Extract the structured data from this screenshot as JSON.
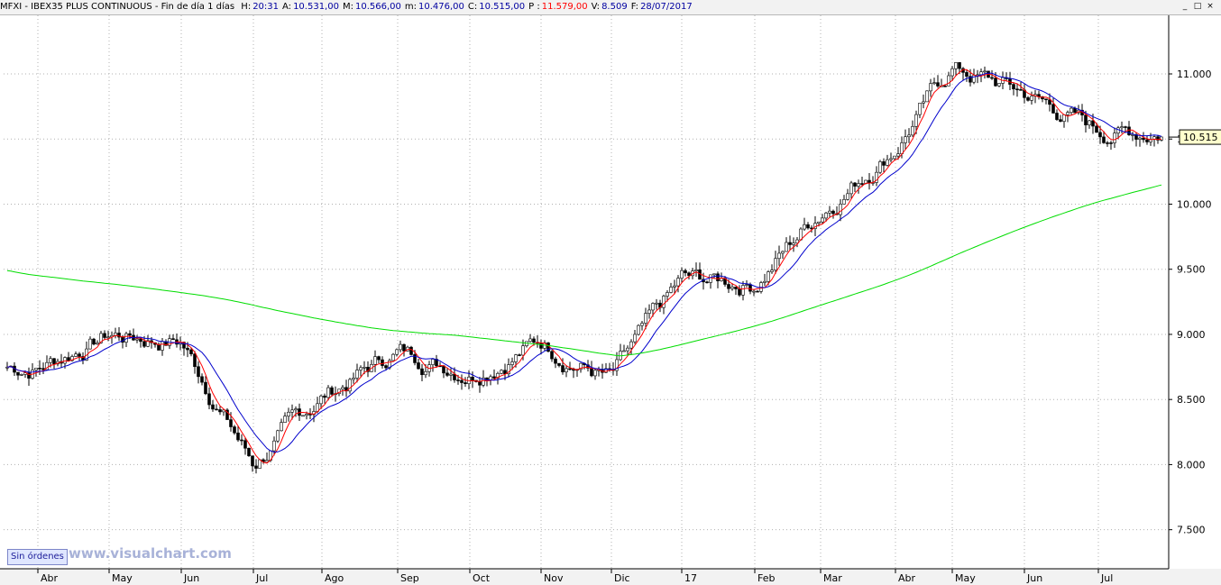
{
  "header": {
    "title": "MFXI - IBEX35 PLUS CONTINUOUS - Fin de día 1 días",
    "fields": [
      {
        "label": "H:",
        "value": "20:31",
        "color": "#0000a0"
      },
      {
        "label": "A:",
        "value": "10.531,00",
        "color": "#0000a0"
      },
      {
        "label": "M:",
        "value": "10.566,00",
        "color": "#0000a0"
      },
      {
        "label": "m:",
        "value": "10.476,00",
        "color": "#0000a0"
      },
      {
        "label": "C:",
        "value": "10.515,00",
        "color": "#0000a0"
      },
      {
        "label": "P :",
        "value": "11.579,00",
        "color": "#ff0000"
      },
      {
        "label": "V:",
        "value": "8.509",
        "color": "#0000a0"
      },
      {
        "label": "F:",
        "value": "28/07/2017",
        "color": "#0000a0"
      }
    ]
  },
  "window_controls": {
    "minimize": "_",
    "restore": "□",
    "close": "×"
  },
  "toolbar": {
    "orders_label": "Sin órdenes"
  },
  "watermark": "www.visualchart.com",
  "colors": {
    "candle": "#000000",
    "ma_short": "#ff0000",
    "ma_medium": "#0000cc",
    "ma_long": "#00dd00",
    "last_price_box": "#ffffcc"
  },
  "chart_data": {
    "type": "candlestick",
    "symbol": "IBEX35 PLUS CONTINUOUS",
    "x_labels": [
      "Abr",
      "May",
      "Jun",
      "Jul",
      "Ago",
      "Sep",
      "Oct",
      "Nov",
      "Dic",
      "17",
      "Feb",
      "Mar",
      "Abr",
      "May",
      "Jun",
      "Jul"
    ],
    "y_ticks": [
      "7.500",
      "8.000",
      "8.500",
      "9.000",
      "9.500",
      "10.000",
      "10.500",
      "11.000"
    ],
    "ylim": [
      7200,
      11450
    ],
    "last_price_label": "10.515",
    "grid": true,
    "monthly_anchors": [
      {
        "month": "Abr",
        "price": 8750
      },
      {
        "month": "May",
        "price": 9000
      },
      {
        "month": "Jun",
        "price": 8950
      },
      {
        "month": "Jul",
        "price": 8000
      },
      {
        "month": "Ago",
        "price": 8520
      },
      {
        "month": "Sep",
        "price": 8870
      },
      {
        "month": "Oct",
        "price": 8730
      },
      {
        "month": "Nov",
        "price": 8950
      },
      {
        "month": "Dic",
        "price": 8650
      },
      {
        "month": "17",
        "price": 9400
      },
      {
        "month": "Feb",
        "price": 9400
      },
      {
        "month": "Mar",
        "price": 9950
      },
      {
        "month": "Abr",
        "price": 10450
      },
      {
        "month": "May",
        "price": 11050
      },
      {
        "month": "Jun",
        "price": 10850
      },
      {
        "month": "Jul",
        "price": 10560
      }
    ],
    "series": [
      {
        "name": "",
        "kind": "moving_average_short",
        "color": "#ff0000"
      },
      {
        "name": "",
        "kind": "moving_average_medium",
        "color": "#0000cc"
      },
      {
        "name": "",
        "kind": "moving_average_long",
        "color": "#00dd00"
      }
    ]
  }
}
